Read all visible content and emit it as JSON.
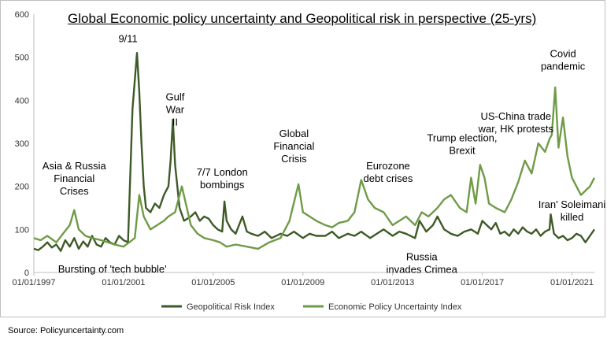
{
  "chart_data": {
    "type": "line",
    "title": "Global Economic policy uncertainty and Geopolitical risk in perspective (25-yrs)",
    "source": "Source: Policyuncertainty.com",
    "xlabel": "",
    "ylabel": "",
    "ylim": [
      0,
      600
    ],
    "yticks": [
      "0",
      "100",
      "200",
      "300",
      "400",
      "500",
      "600"
    ],
    "xlim": [
      1997.0,
      2022.0
    ],
    "xticks": [
      {
        "label": "01/01/1997",
        "value": 1997
      },
      {
        "label": "01/01/2001",
        "value": 2001
      },
      {
        "label": "01/01/2005",
        "value": 2005
      },
      {
        "label": "01/01/2009",
        "value": 2009
      },
      {
        "label": "01/01/2013",
        "value": 2013
      },
      {
        "label": "01/01/2017",
        "value": 2017
      },
      {
        "label": "01/01/2021",
        "value": 2021
      }
    ],
    "grid": false,
    "legend": "bottom",
    "series": [
      {
        "name": "Geopolitical Risk Index",
        "color": "#3e5a26",
        "x": [
          1997.0,
          1997.2,
          1997.4,
          1997.6,
          1997.8,
          1998.0,
          1998.2,
          1998.4,
          1998.6,
          1998.8,
          1999.0,
          1999.2,
          1999.4,
          1999.6,
          1999.8,
          2000.0,
          2000.2,
          2000.4,
          2000.6,
          2000.8,
          2001.0,
          2001.2,
          2001.4,
          2001.6,
          2001.7,
          2001.8,
          2001.9,
          2002.0,
          2002.2,
          2002.4,
          2002.6,
          2002.8,
          2003.0,
          2003.1,
          2003.2,
          2003.3,
          2003.5,
          2003.7,
          2004.0,
          2004.2,
          2004.4,
          2004.6,
          2004.8,
          2005.0,
          2005.2,
          2005.4,
          2005.5,
          2005.6,
          2005.8,
          2006.0,
          2006.3,
          2006.5,
          2006.7,
          2007.0,
          2007.3,
          2007.6,
          2008.0,
          2008.3,
          2008.6,
          2009.0,
          2009.3,
          2009.6,
          2010.0,
          2010.3,
          2010.6,
          2011.0,
          2011.3,
          2011.6,
          2012.0,
          2012.3,
          2012.6,
          2013.0,
          2013.3,
          2013.6,
          2014.0,
          2014.2,
          2014.5,
          2014.8,
          2015.0,
          2015.3,
          2015.6,
          2015.9,
          2016.2,
          2016.5,
          2016.8,
          2017.0,
          2017.2,
          2017.4,
          2017.6,
          2017.8,
          2018.0,
          2018.2,
          2018.4,
          2018.6,
          2018.8,
          2019.0,
          2019.2,
          2019.4,
          2019.6,
          2019.8,
          2020.0,
          2020.05,
          2020.2,
          2020.4,
          2020.6,
          2020.8,
          2021.0,
          2021.2,
          2021.4,
          2021.6,
          2021.8,
          2022.0
        ],
        "values": [
          55,
          52,
          60,
          70,
          58,
          65,
          50,
          75,
          60,
          80,
          55,
          72,
          60,
          85,
          65,
          60,
          80,
          70,
          65,
          85,
          75,
          70,
          380,
          510,
          420,
          300,
          200,
          150,
          140,
          160,
          150,
          180,
          200,
          260,
          355,
          250,
          150,
          120,
          130,
          140,
          120,
          130,
          125,
          110,
          100,
          95,
          165,
          120,
          100,
          90,
          130,
          95,
          90,
          85,
          95,
          80,
          90,
          85,
          95,
          80,
          90,
          85,
          85,
          95,
          80,
          90,
          85,
          95,
          80,
          90,
          100,
          85,
          95,
          90,
          80,
          120,
          95,
          110,
          130,
          100,
          90,
          85,
          95,
          100,
          90,
          120,
          110,
          100,
          115,
          90,
          95,
          85,
          100,
          90,
          105,
          95,
          90,
          100,
          85,
          95,
          100,
          135,
          90,
          80,
          85,
          75,
          80,
          90,
          85,
          70,
          85,
          100
        ]
      },
      {
        "name": "Economic Policy Uncertainty Index",
        "color": "#6f9b47",
        "x": [
          1997.0,
          1997.3,
          1997.6,
          1998.0,
          1998.3,
          1998.6,
          1998.8,
          1999.0,
          1999.3,
          1999.6,
          2000.0,
          2000.3,
          2000.6,
          2001.0,
          2001.5,
          2001.7,
          2001.9,
          2002.2,
          2002.5,
          2002.8,
          2003.0,
          2003.3,
          2003.6,
          2004.0,
          2004.3,
          2004.6,
          2005.0,
          2005.3,
          2005.6,
          2006.0,
          2006.5,
          2007.0,
          2007.5,
          2008.0,
          2008.4,
          2008.8,
          2009.0,
          2009.3,
          2009.6,
          2010.0,
          2010.3,
          2010.6,
          2011.0,
          2011.3,
          2011.6,
          2011.9,
          2012.2,
          2012.6,
          2013.0,
          2013.3,
          2013.6,
          2014.0,
          2014.3,
          2014.6,
          2015.0,
          2015.3,
          2015.6,
          2016.0,
          2016.3,
          2016.5,
          2016.7,
          2016.9,
          2017.1,
          2017.3,
          2017.6,
          2018.0,
          2018.3,
          2018.6,
          2018.9,
          2019.2,
          2019.5,
          2019.8,
          2020.0,
          2020.1,
          2020.25,
          2020.4,
          2020.6,
          2020.8,
          2021.0,
          2021.2,
          2021.4,
          2021.6,
          2021.8,
          2022.0
        ],
        "values": [
          80,
          75,
          85,
          70,
          90,
          110,
          145,
          100,
          85,
          80,
          75,
          70,
          65,
          60,
          80,
          180,
          130,
          100,
          110,
          120,
          130,
          140,
          200,
          110,
          90,
          80,
          75,
          70,
          60,
          65,
          60,
          55,
          70,
          80,
          120,
          205,
          140,
          130,
          120,
          110,
          105,
          115,
          120,
          140,
          215,
          170,
          150,
          140,
          110,
          120,
          130,
          110,
          140,
          130,
          150,
          170,
          180,
          150,
          140,
          220,
          160,
          250,
          220,
          160,
          150,
          140,
          170,
          210,
          260,
          230,
          300,
          280,
          310,
          320,
          430,
          290,
          360,
          270,
          220,
          200,
          180,
          190,
          200,
          220
        ]
      }
    ],
    "annotations": [
      {
        "text": "9/11",
        "x": 2001.2,
        "y": 535,
        "anchor": "middle"
      },
      {
        "text": "Gulf\nWar\nII",
        "x": 2003.3,
        "y": 400,
        "anchor": "middle"
      },
      {
        "text": "Asia & Russia\nFinancial\nCrises",
        "x": 1998.8,
        "y": 240,
        "anchor": "middle"
      },
      {
        "text": "Bursting of 'tech bubble'",
        "x": 2000.5,
        "y": 0,
        "anchor": "middle"
      },
      {
        "text": "7/7 London\nbombings",
        "x": 2005.4,
        "y": 225,
        "anchor": "middle"
      },
      {
        "text": "Global\nFinancial\nCrisis",
        "x": 2008.6,
        "y": 315,
        "anchor": "middle"
      },
      {
        "text": "Eurozone\ndebt crises",
        "x": 2012.8,
        "y": 240,
        "anchor": "middle"
      },
      {
        "text": "Trump election,\nBrexit",
        "x": 2016.1,
        "y": 305,
        "anchor": "middle"
      },
      {
        "text": "US-China trade\nwar, HK protests",
        "x": 2018.5,
        "y": 355,
        "anchor": "middle"
      },
      {
        "text": "Covid\npandemic",
        "x": 2020.6,
        "y": 500,
        "anchor": "middle"
      },
      {
        "text": "Iran' Soleimani\nkilled",
        "x": 2021.0,
        "y": 150,
        "anchor": "middle"
      },
      {
        "text": "Russia\ninvades Crimea",
        "x": 2014.3,
        "y": 28,
        "anchor": "middle"
      }
    ]
  }
}
